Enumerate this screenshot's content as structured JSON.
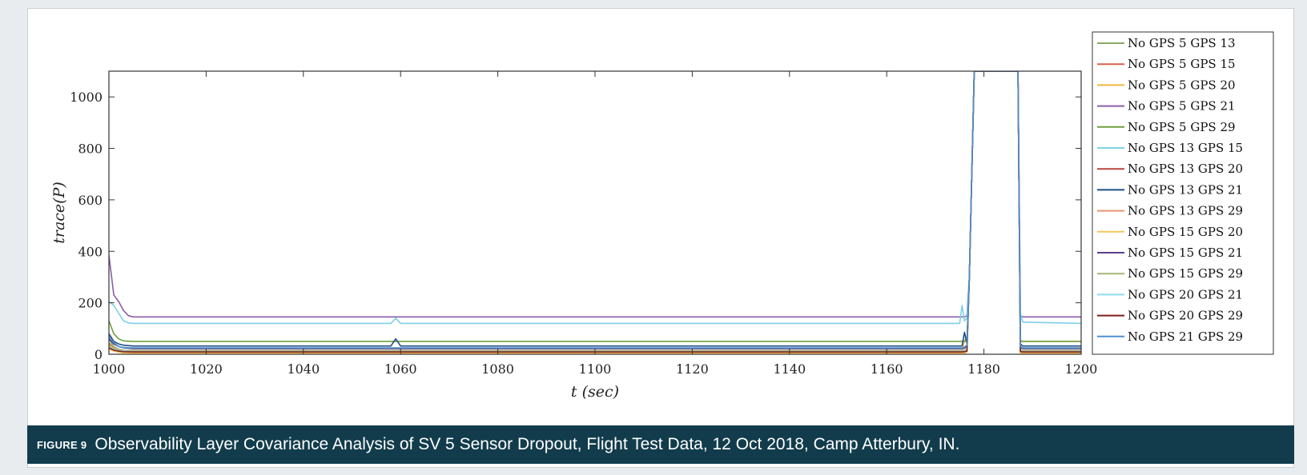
{
  "caption": {
    "label": "FIGURE 9",
    "text": "Observability Layer Covariance Analysis of SV 5 Sensor Dropout, Flight Test Data, 12 Oct 2018, Camp Atterbury, IN."
  },
  "chart_data": {
    "type": "line",
    "xlabel": "t (sec)",
    "ylabel": "trace(P)",
    "xlim": [
      1000,
      1200
    ],
    "ylim": [
      0,
      1100
    ],
    "xticks": [
      1000,
      1020,
      1040,
      1060,
      1080,
      1100,
      1120,
      1140,
      1160,
      1180,
      1200
    ],
    "yticks": [
      0,
      200,
      400,
      600,
      800,
      1000
    ],
    "grid": false,
    "legend_position": "outside-right",
    "series": [
      {
        "name": "No GPS 5 GPS 13",
        "color": "#8aa86a",
        "x": [
          1000,
          1001,
          1002,
          1003,
          1005,
          1175.5,
          1176,
          1176.5,
          1177,
          1178,
          1187,
          1187.5,
          1188,
          1200
        ],
        "y": [
          60,
          30,
          15,
          8,
          5,
          5,
          5,
          12,
          300,
          1100,
          1100,
          20,
          10,
          10
        ]
      },
      {
        "name": "No GPS 5 GPS 15",
        "color": "#d9624a",
        "x": [
          1000,
          1001,
          1002,
          1003,
          1005,
          1175.5,
          1176,
          1176.5,
          1177,
          1178,
          1187,
          1187.5,
          1188,
          1200
        ],
        "y": [
          40,
          25,
          15,
          10,
          8,
          8,
          10,
          15,
          300,
          1100,
          1100,
          15,
          10,
          10
        ]
      },
      {
        "name": "No GPS 5 GPS 20",
        "color": "#f2b640",
        "x": [
          1000,
          1001,
          1002,
          1003,
          1005,
          1175.5,
          1176,
          1176.5,
          1177,
          1178,
          1187,
          1187.5,
          1188,
          1200
        ],
        "y": [
          35,
          22,
          14,
          10,
          8,
          8,
          55,
          60,
          300,
          1100,
          1100,
          55,
          50,
          50
        ]
      },
      {
        "name": "No GPS 5 GPS 21",
        "color": "#8b5ea8",
        "x": [
          1000,
          1001,
          1002,
          1003,
          1004,
          1005,
          1175.5,
          1176,
          1176.5,
          1177,
          1178,
          1187,
          1187.5,
          1188,
          1200
        ],
        "y": [
          385,
          230,
          205,
          170,
          150,
          145,
          145,
          145,
          150,
          300,
          1100,
          1100,
          150,
          145,
          145
        ]
      },
      {
        "name": "No GPS 5 GPS 29",
        "color": "#6ea040",
        "x": [
          1000,
          1001,
          1002,
          1003,
          1005,
          1175.5,
          1176,
          1176.5,
          1177,
          1178,
          1187,
          1187.5,
          1188,
          1200
        ],
        "y": [
          130,
          80,
          60,
          52,
          50,
          50,
          50,
          55,
          300,
          1100,
          1100,
          50,
          50,
          50
        ]
      },
      {
        "name": "No GPS 13 GPS 15",
        "color": "#7fcfe8",
        "x": [
          1000,
          1001,
          1002,
          1003,
          1004,
          1005,
          1058,
          1059,
          1060,
          1175,
          1175.5,
          1176,
          1176.5,
          1177,
          1178,
          1187,
          1187.5,
          1188,
          1200
        ],
        "y": [
          205,
          190,
          160,
          130,
          122,
          120,
          120,
          140,
          120,
          120,
          190,
          130,
          140,
          300,
          1100,
          1100,
          160,
          125,
          120
        ]
      },
      {
        "name": "No GPS 13 GPS 20",
        "color": "#b8453c",
        "x": [
          1000,
          1001,
          1002,
          1003,
          1005,
          1175.5,
          1176,
          1176.5,
          1177,
          1178,
          1187,
          1187.5,
          1188,
          1200
        ],
        "y": [
          30,
          20,
          12,
          8,
          6,
          6,
          8,
          12,
          300,
          1100,
          1100,
          12,
          8,
          8
        ]
      },
      {
        "name": "No GPS 13 GPS 21",
        "color": "#1f4e88",
        "x": [
          1000,
          1001,
          1002,
          1003,
          1005,
          1058,
          1059,
          1060,
          1175.5,
          1176,
          1176.5,
          1177,
          1178,
          1187,
          1187.5,
          1188,
          1200
        ],
        "y": [
          80,
          50,
          40,
          35,
          32,
          32,
          60,
          32,
          32,
          85,
          40,
          300,
          1100,
          1100,
          40,
          32,
          32
        ]
      },
      {
        "name": "No GPS 13 GPS 29",
        "color": "#eb9372",
        "x": [
          1000,
          1001,
          1002,
          1003,
          1005,
          1175.5,
          1176,
          1176.5,
          1177,
          1178,
          1187,
          1187.5,
          1188,
          1200
        ],
        "y": [
          25,
          15,
          10,
          6,
          4,
          4,
          6,
          10,
          300,
          1100,
          1100,
          8,
          5,
          5
        ]
      },
      {
        "name": "No GPS 15 GPS 20",
        "color": "#f5c65e",
        "x": [
          1000,
          1001,
          1002,
          1003,
          1005,
          1175.5,
          1176,
          1176.5,
          1177,
          1178,
          1187,
          1187.5,
          1188,
          1200
        ],
        "y": [
          20,
          12,
          8,
          5,
          3,
          3,
          5,
          8,
          300,
          1100,
          1100,
          6,
          3,
          3
        ]
      },
      {
        "name": "No GPS 15 GPS 21",
        "color": "#5a3f8c",
        "x": [
          1000,
          1001,
          1002,
          1003,
          1005,
          1175.5,
          1176,
          1176.5,
          1177,
          1178,
          1187,
          1187.5,
          1188,
          1200
        ],
        "y": [
          60,
          40,
          30,
          25,
          22,
          22,
          24,
          30,
          300,
          1100,
          1100,
          26,
          22,
          22
        ]
      },
      {
        "name": "No GPS 15 GPS 29",
        "color": "#a6b57a",
        "x": [
          1000,
          1001,
          1002,
          1003,
          1005,
          1175.5,
          1176,
          1176.5,
          1177,
          1178,
          1187,
          1187.5,
          1188,
          1200
        ],
        "y": [
          45,
          30,
          20,
          16,
          15,
          15,
          16,
          20,
          300,
          1100,
          1100,
          16,
          15,
          15
        ]
      },
      {
        "name": "No GPS 20 GPS 21",
        "color": "#8edcf0",
        "x": [
          1000,
          1001,
          1002,
          1003,
          1005,
          1175.5,
          1176,
          1176.5,
          1177,
          1178,
          1187,
          1187.5,
          1188,
          1200
        ],
        "y": [
          30,
          20,
          14,
          12,
          10,
          10,
          12,
          16,
          300,
          1100,
          1100,
          12,
          10,
          10
        ]
      },
      {
        "name": "No GPS 20 GPS 29",
        "color": "#7d1f18",
        "x": [
          1000,
          1001,
          1002,
          1003,
          1005,
          1175.5,
          1176,
          1176.5,
          1177,
          1178,
          1187,
          1187.5,
          1188,
          1200
        ],
        "y": [
          25,
          16,
          12,
          10,
          9,
          9,
          10,
          12,
          300,
          1100,
          1100,
          10,
          9,
          9
        ]
      },
      {
        "name": "No GPS 21 GPS 29",
        "color": "#4d8fcc",
        "x": [
          1000,
          1001,
          1002,
          1003,
          1005,
          1175.5,
          1176,
          1176.5,
          1177,
          1178,
          1187,
          1187.5,
          1188,
          1200
        ],
        "y": [
          70,
          45,
          30,
          26,
          25,
          25,
          28,
          35,
          300,
          1100,
          1100,
          30,
          25,
          25
        ]
      }
    ]
  }
}
